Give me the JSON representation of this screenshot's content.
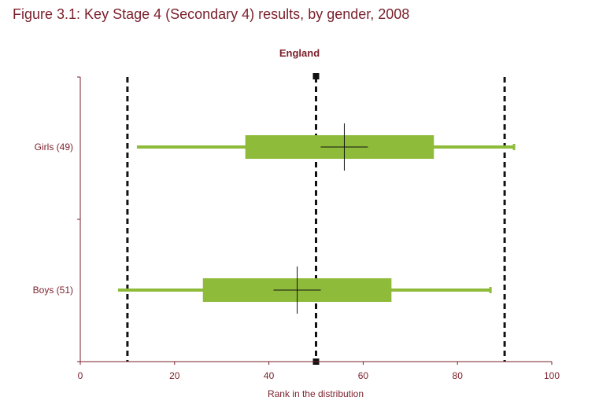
{
  "figure_title": "Figure 3.1: Key Stage 4 (Secondary 4) results, by gender, 2008",
  "colors": {
    "text": "#7a1f2b",
    "box": "#8fbb3a",
    "axis": "#7a1f2b",
    "ref_line": "#111111"
  },
  "chart_data": {
    "type": "boxplot",
    "title": "England",
    "xlabel": "Rank in the distribution",
    "ylabel": "",
    "xlim": [
      0,
      100
    ],
    "x_ticks": [
      0,
      20,
      40,
      60,
      80,
      100
    ],
    "reference_lines": [
      10,
      50,
      90
    ],
    "grid": false,
    "series": [
      {
        "label": "Girls (49)",
        "min": 12,
        "q1": 35,
        "q3": 75,
        "max": 92,
        "mean": 56
      },
      {
        "label": "Boys (51)",
        "min": 8,
        "q1": 26,
        "q3": 66,
        "max": 87,
        "mean": 46
      }
    ]
  }
}
